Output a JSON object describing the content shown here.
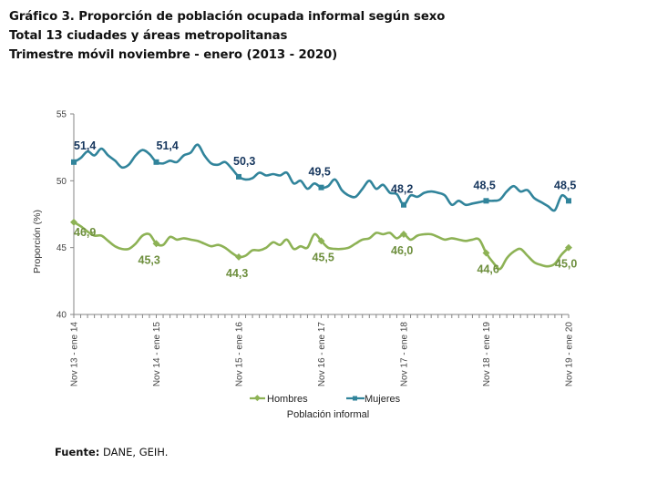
{
  "header": {
    "title_lines": [
      "Gráfico 3. Proporción de población ocupada informal según sexo",
      "Total 13 ciudades y áreas metropolitanas",
      "Trimestre móvil noviembre - enero (2013 -  2020)"
    ]
  },
  "footer": {
    "source_label": "Fuente:",
    "source_text": " DANE, GEIH."
  },
  "chart_data": {
    "type": "line",
    "title": "Proporción de población ocupada informal según sexo",
    "xlabel": "Población informal",
    "ylabel": "Proporción (%)",
    "ylim": [
      40,
      55
    ],
    "yticks": [
      40,
      45,
      50,
      55
    ],
    "grid": false,
    "legend_position": "bottom",
    "x_tick_labels": [
      "Nov 13 - ene 14",
      "Nov 14 - ene 15",
      "Nov 15 - ene 16",
      "Nov 16 - ene 17",
      "Nov 17 - ene 18",
      "Nov 18 - ene 19",
      "Nov 19 - ene 20"
    ],
    "x_tick_label_indices": [
      0,
      12,
      24,
      36,
      48,
      60,
      72
    ],
    "n_points": 73,
    "series": [
      {
        "name": "Hombres",
        "color": "#8DB255",
        "label_color": "#6E8F3E",
        "marker": "diamond",
        "labeled_points": [
          {
            "index": 0,
            "value": 46.9,
            "label": "46,9"
          },
          {
            "index": 12,
            "value": 45.3,
            "label": "45,3"
          },
          {
            "index": 24,
            "value": 44.3,
            "label": "44,3"
          },
          {
            "index": 36,
            "value": 45.5,
            "label": "45,5"
          },
          {
            "index": 48,
            "value": 46.0,
            "label": "46,0"
          },
          {
            "index": 60,
            "value": 44.6,
            "label": "44,6"
          },
          {
            "index": 72,
            "value": 45.0,
            "label": "45,0"
          }
        ],
        "values": [
          46.9,
          46.6,
          46.2,
          45.9,
          45.9,
          45.5,
          45.1,
          44.9,
          44.9,
          45.3,
          45.9,
          46.0,
          45.3,
          45.2,
          45.8,
          45.6,
          45.7,
          45.6,
          45.5,
          45.3,
          45.1,
          45.2,
          45.0,
          44.6,
          44.3,
          44.4,
          44.8,
          44.8,
          45.0,
          45.4,
          45.2,
          45.6,
          44.9,
          45.1,
          45.0,
          46.0,
          45.5,
          45.0,
          44.9,
          44.9,
          45.0,
          45.3,
          45.6,
          45.7,
          46.1,
          46.0,
          46.1,
          45.7,
          46.0,
          45.6,
          45.9,
          46.0,
          46.0,
          45.8,
          45.6,
          45.7,
          45.6,
          45.5,
          45.6,
          45.6,
          44.6,
          43.9,
          43.4,
          44.2,
          44.7,
          44.9,
          44.4,
          43.9,
          43.7,
          43.6,
          43.8,
          44.5,
          45.0
        ]
      },
      {
        "name": "Mujeres",
        "color": "#31849B",
        "label_color": "#17375E",
        "marker": "square",
        "labeled_points": [
          {
            "index": 0,
            "value": 51.4,
            "label": "51,4"
          },
          {
            "index": 12,
            "value": 51.4,
            "label": "51,4"
          },
          {
            "index": 24,
            "value": 50.3,
            "label": "50,3"
          },
          {
            "index": 36,
            "value": 49.5,
            "label": "49,5"
          },
          {
            "index": 48,
            "value": 48.2,
            "label": "48,2"
          },
          {
            "index": 60,
            "value": 48.5,
            "label": "48,5"
          },
          {
            "index": 72,
            "value": 48.5,
            "label": "48,5"
          }
        ],
        "values": [
          51.4,
          51.7,
          52.2,
          51.9,
          52.4,
          51.9,
          51.5,
          51.0,
          51.2,
          51.9,
          52.3,
          52.0,
          51.4,
          51.3,
          51.5,
          51.4,
          51.9,
          52.1,
          52.7,
          51.9,
          51.3,
          51.2,
          51.4,
          50.9,
          50.3,
          50.1,
          50.2,
          50.6,
          50.4,
          50.5,
          50.4,
          50.6,
          49.8,
          50.0,
          49.4,
          49.8,
          49.5,
          49.6,
          50.1,
          49.3,
          48.9,
          48.8,
          49.4,
          50.0,
          49.4,
          49.7,
          49.1,
          49.0,
          48.2,
          48.9,
          48.8,
          49.1,
          49.2,
          49.1,
          48.9,
          48.2,
          48.5,
          48.2,
          48.3,
          48.4,
          48.5,
          48.5,
          48.6,
          49.2,
          49.6,
          49.2,
          49.3,
          48.7,
          48.4,
          48.1,
          47.8,
          48.9,
          48.5
        ]
      }
    ]
  }
}
